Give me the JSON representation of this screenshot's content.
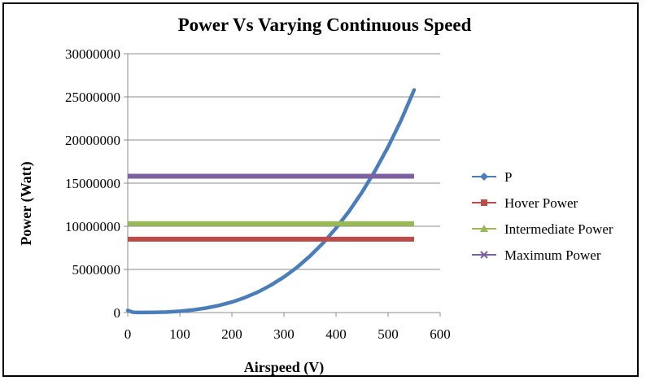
{
  "chart_data": {
    "type": "line",
    "title": "Power Vs Varying Continuous Speed",
    "xlabel": "Airspeed (V)",
    "ylabel": "Power  (Watt)",
    "xlim": [
      0,
      600
    ],
    "ylim": [
      0,
      30000000
    ],
    "x_ticks": [
      "0",
      "100",
      "200",
      "300",
      "400",
      "500",
      "600"
    ],
    "y_ticks": [
      "0",
      "5000000",
      "10000000",
      "15000000",
      "20000000",
      "25000000",
      "30000000"
    ],
    "grid": "horizontal",
    "legend_position": "right",
    "series": [
      {
        "name": "P",
        "color": "#4a7ebb",
        "marker": "diamond",
        "x": [
          0,
          10,
          20,
          30,
          50,
          75,
          100,
          125,
          150,
          175,
          200,
          225,
          250,
          275,
          300,
          325,
          350,
          375,
          400,
          425,
          450,
          475,
          500,
          525,
          550
        ],
        "y": [
          250000,
          40000,
          10000,
          5000,
          20000,
          60000,
          150000,
          300000,
          520000,
          820000,
          1220000,
          1740000,
          2380000,
          3180000,
          4120000,
          5240000,
          6550000,
          8050000,
          9780000,
          11740000,
          13950000,
          16430000,
          19200000,
          22280000,
          25800000
        ]
      },
      {
        "name": "Hover Power",
        "color": "#be4b48",
        "marker": "square",
        "x": [
          0,
          550
        ],
        "y": [
          8500000,
          8500000
        ]
      },
      {
        "name": "Intermediate Power",
        "color": "#98b954",
        "marker": "triangle",
        "x": [
          0,
          550
        ],
        "y": [
          10300000,
          10300000
        ]
      },
      {
        "name": "Maximum Power",
        "color": "#7d60a0",
        "marker": "x",
        "x": [
          0,
          550
        ],
        "y": [
          15800000,
          15800000
        ]
      }
    ]
  }
}
